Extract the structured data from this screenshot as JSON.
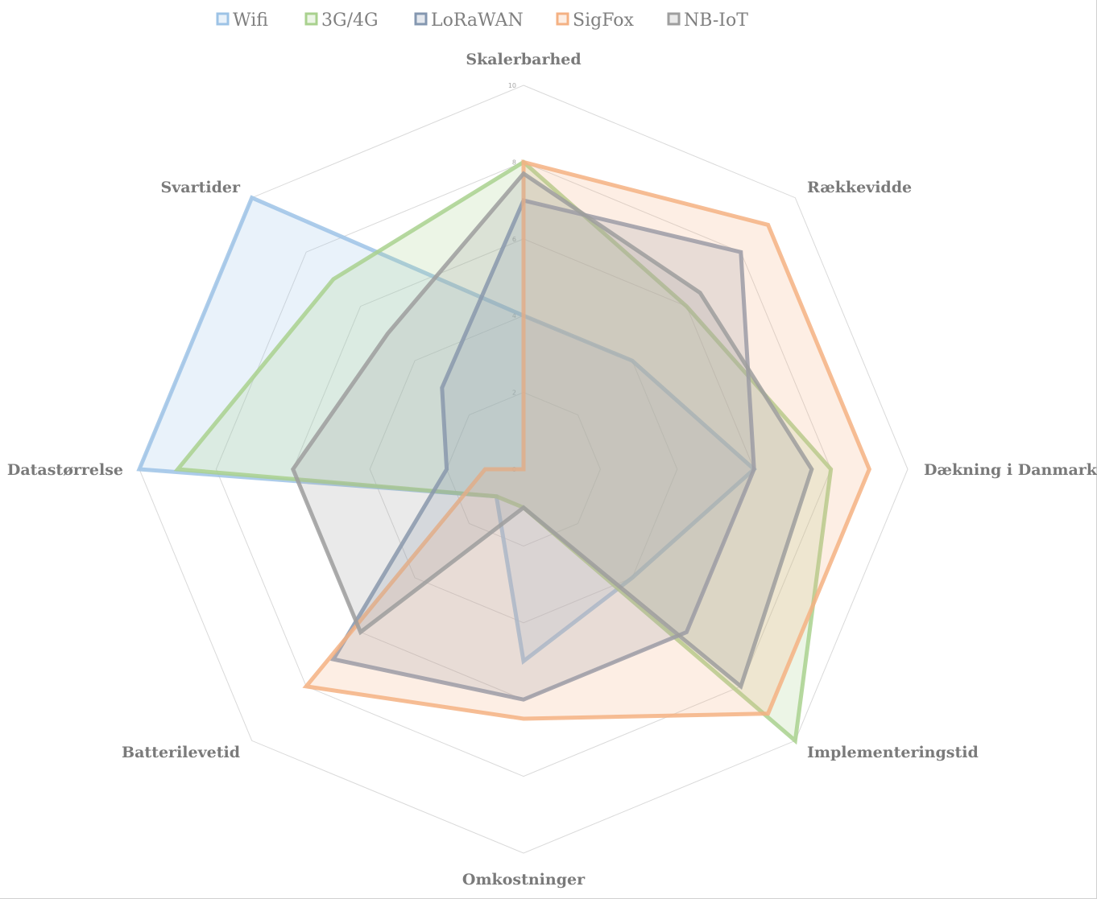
{
  "chart_data": {
    "type": "radar",
    "title": "",
    "axes": [
      "Skalerbarhed",
      "Rækkevidde",
      "Dækning i Danmark",
      "Implementeringstid",
      "Omkostninger",
      "Batterilevetid",
      "Datastørrelse",
      "Svartider"
    ],
    "scale": {
      "min": 0,
      "max": 10,
      "ticks": [
        0,
        2,
        4,
        6,
        8,
        10
      ]
    },
    "grid": true,
    "legend_position": "top",
    "series": [
      {
        "name": "Wifi",
        "color": "#9dc3e6",
        "values": [
          4,
          4,
          6,
          4,
          5,
          1,
          10,
          10
        ]
      },
      {
        "name": "3G/4G",
        "color": "#a9d18e",
        "values": [
          8,
          6,
          8,
          10,
          1,
          1,
          9,
          7
        ]
      },
      {
        "name": "LoRaWAN",
        "color": "#8497b0",
        "values": [
          7,
          8,
          6,
          6,
          6,
          7,
          2,
          3
        ]
      },
      {
        "name": "SigFox",
        "color": "#f4b183",
        "values": [
          8,
          9,
          9,
          9,
          6.5,
          8,
          1,
          0
        ]
      },
      {
        "name": "NB-IoT",
        "color": "#9e9e9e",
        "values": [
          7.7,
          6.5,
          7.5,
          8,
          1,
          6,
          6,
          5
        ]
      }
    ]
  }
}
